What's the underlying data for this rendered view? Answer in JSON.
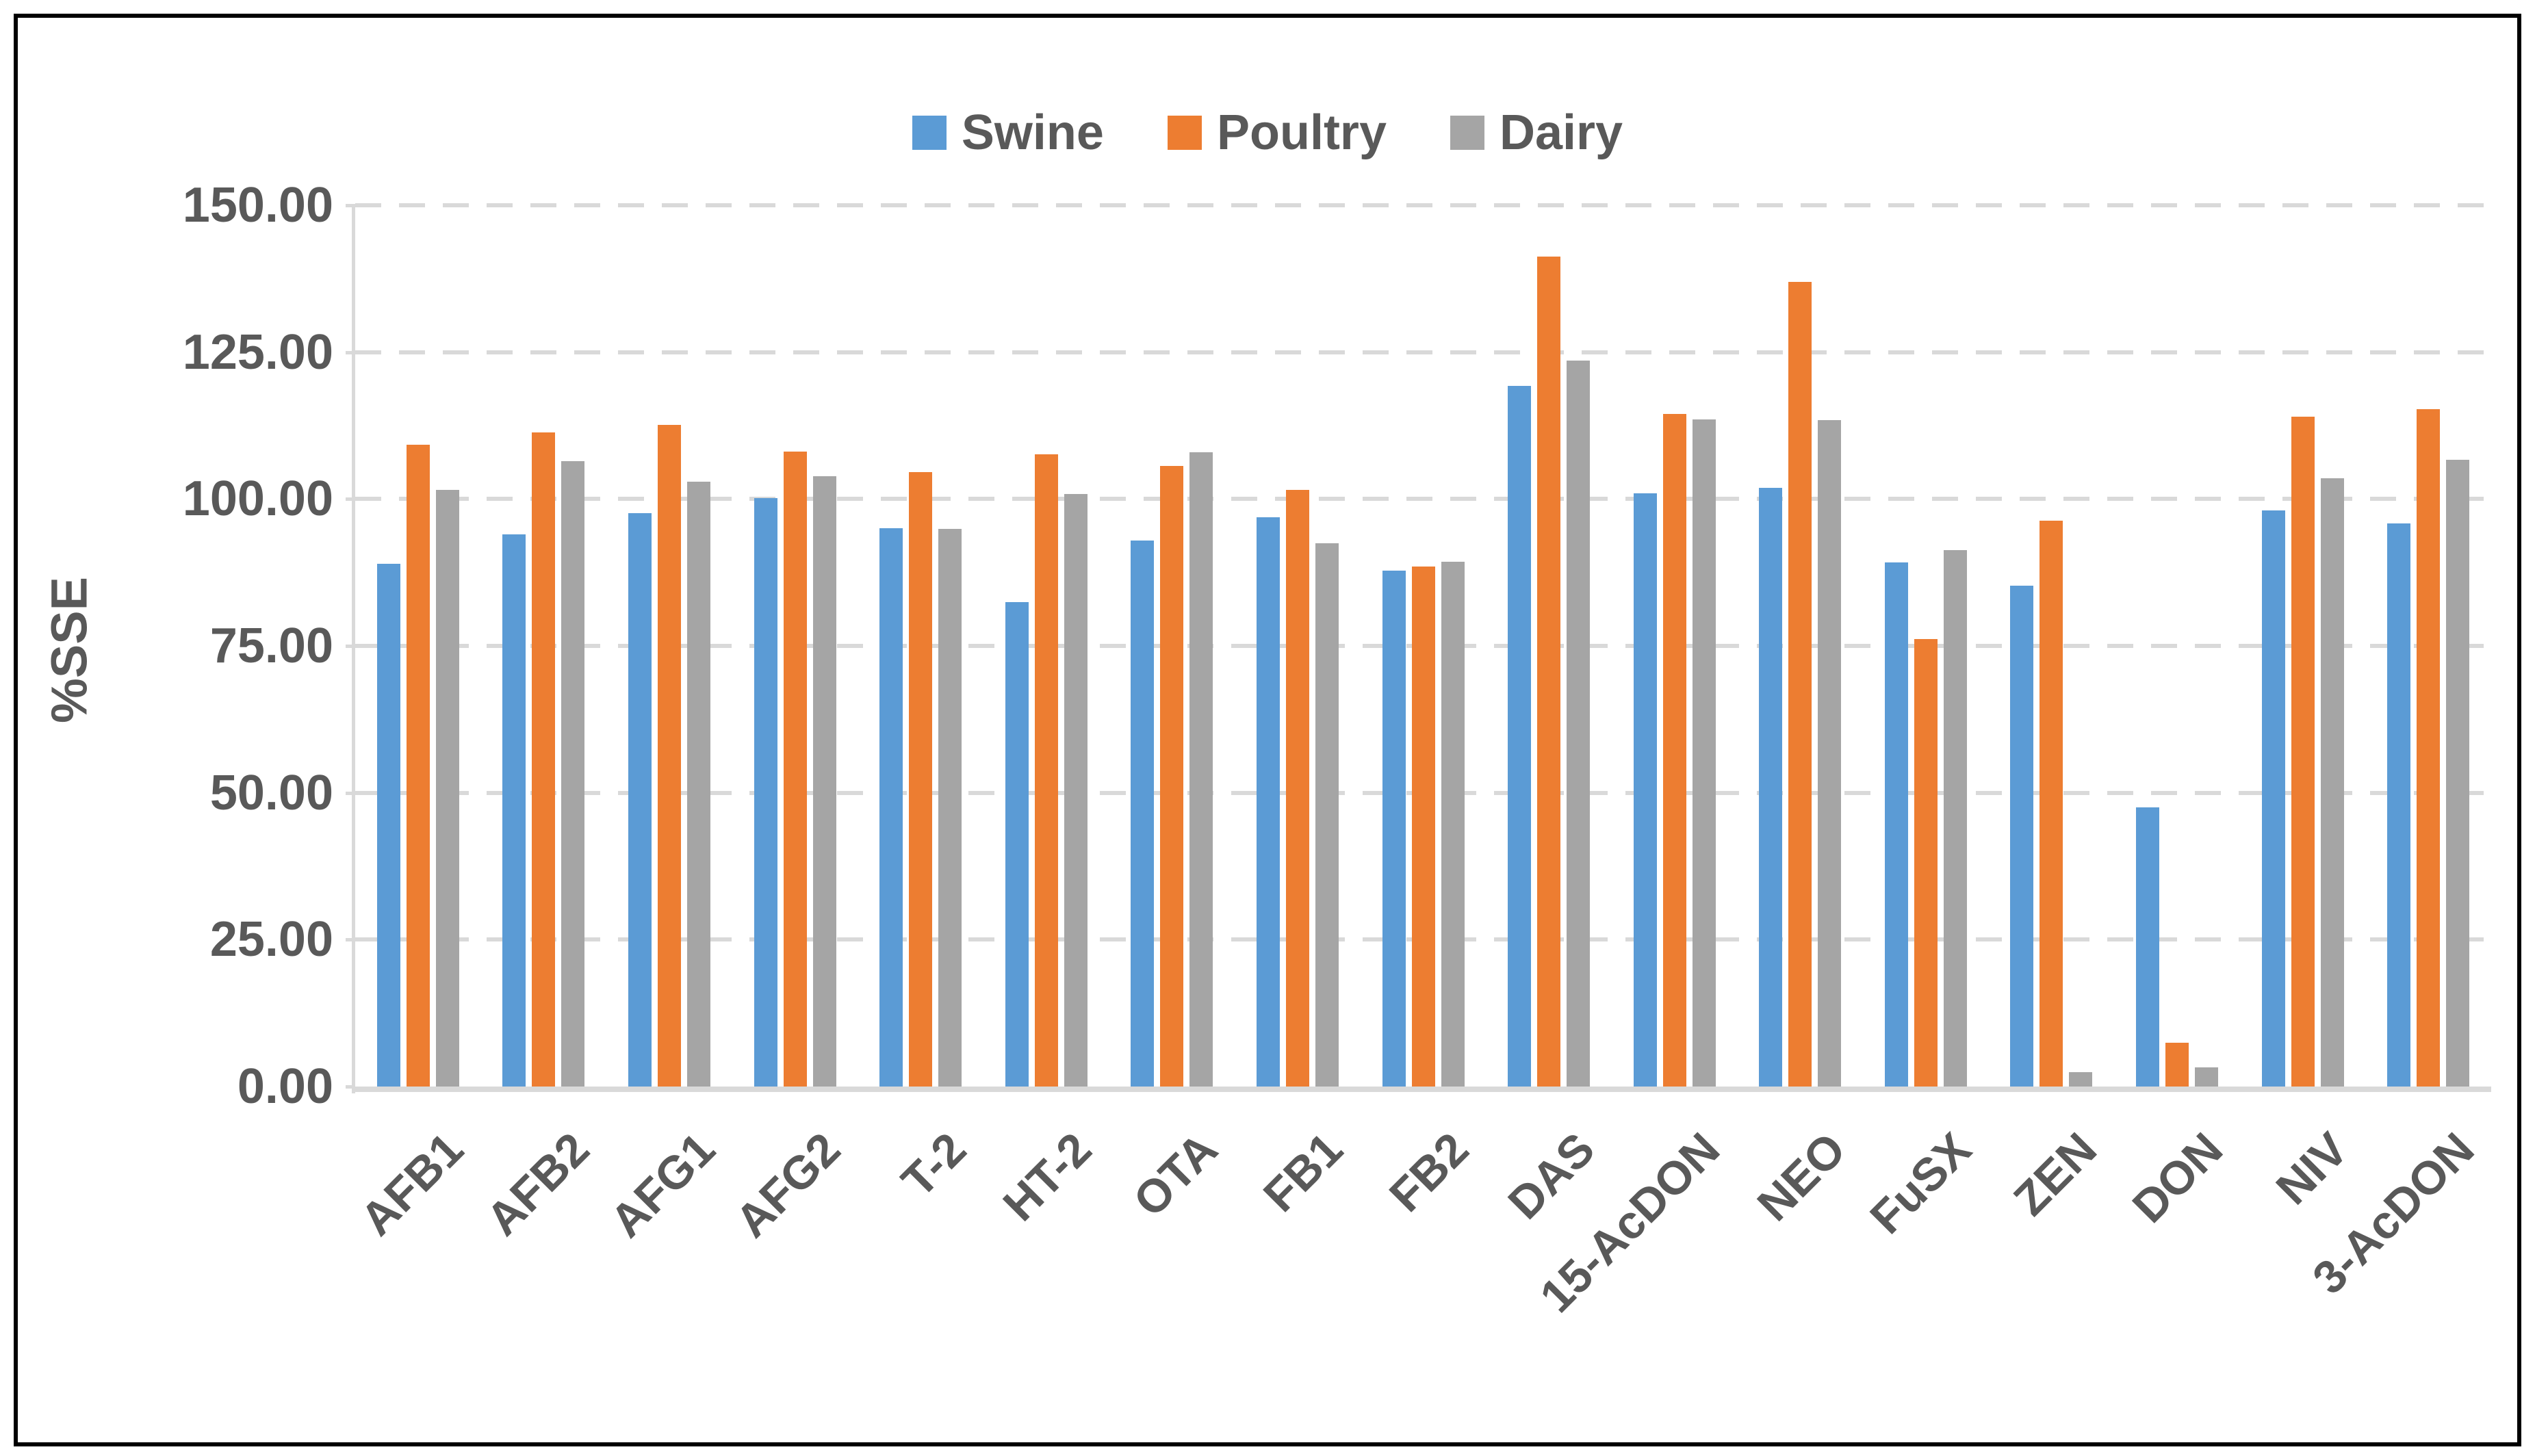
{
  "figure": {
    "background_color": "#FFFFFF",
    "border_color": "#000000"
  },
  "colors": {
    "swine": "#5B9BD5",
    "poultry": "#ED7D31",
    "dairy": "#A5A5A5",
    "axis_text": "#595959",
    "gridline": "#D9D9D9"
  },
  "legend": {
    "position": "top-center",
    "items": [
      {
        "label": "Swine",
        "color": "#5B9BD5"
      },
      {
        "label": "Poultry",
        "color": "#ED7D31"
      },
      {
        "label": "Dairy",
        "color": "#A5A5A5"
      }
    ]
  },
  "y_axis": {
    "title": "%SSE",
    "tick_labels": [
      "0.00",
      "25.00",
      "50.00",
      "75.00",
      "100.00",
      "125.00",
      "150.00"
    ],
    "min": 0,
    "max": 150,
    "step": 25
  },
  "chart_data": {
    "type": "bar",
    "title": "",
    "xlabel": "",
    "ylabel": "%SSE",
    "ylim": [
      0,
      150
    ],
    "ytick_step": 25,
    "grid": "horizontal-dashed",
    "legend_position": "top-center",
    "categories": [
      "AFB1",
      "AFB2",
      "AFG1",
      "AFG2",
      "T-2",
      "HT-2",
      "OTA",
      "FB1",
      "FB2",
      "DAS",
      "15-AcDON",
      "NEO",
      "FuSX",
      "ZEN",
      "DON",
      "NIV",
      "3-AcDON"
    ],
    "series": [
      {
        "name": "Swine",
        "color": "#5B9BD5",
        "values": [
          89.0,
          94.0,
          97.6,
          100.1,
          95.0,
          82.5,
          92.9,
          96.9,
          87.8,
          119.2,
          101.0,
          101.9,
          89.2,
          85.2,
          47.5,
          98.1,
          95.9
        ]
      },
      {
        "name": "Poultry",
        "color": "#ED7D31",
        "values": [
          109.2,
          111.3,
          112.6,
          108.1,
          104.6,
          107.6,
          105.6,
          101.5,
          88.5,
          141.3,
          114.5,
          137.0,
          76.2,
          96.3,
          7.4,
          114.0,
          115.3
        ]
      },
      {
        "name": "Dairy",
        "color": "#A5A5A5",
        "values": [
          101.5,
          106.4,
          102.9,
          103.9,
          94.9,
          100.9,
          108.0,
          92.5,
          89.3,
          123.6,
          113.6,
          113.4,
          91.3,
          2.5,
          3.3,
          103.5,
          106.7
        ]
      }
    ]
  }
}
